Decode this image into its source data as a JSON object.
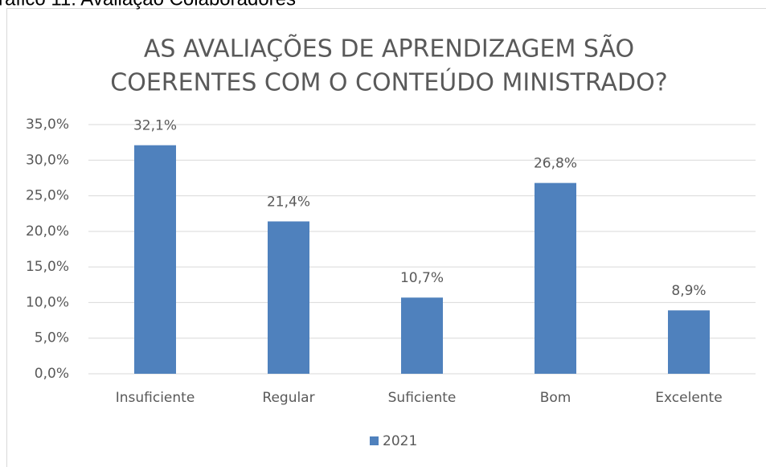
{
  "caption": "ráfico 11: Avaliação Colaboradores",
  "chart_data": {
    "type": "bar",
    "title": [
      "AS AVALIAÇÕES DE APRENDIZAGEM SÃO",
      "COERENTES COM O CONTEÚDO MINISTRADO?"
    ],
    "categories": [
      "Insuficiente",
      "Regular",
      "Suficiente",
      "Bom",
      "Excelente"
    ],
    "series": [
      {
        "name": "2021",
        "color": "#4f81bd",
        "values": [
          32.1,
          21.4,
          10.7,
          26.8,
          8.9
        ],
        "value_labels": [
          "32,1%",
          "21,4%",
          "10,7%",
          "26,8%",
          "8,9%"
        ]
      }
    ],
    "ylim": [
      0,
      35
    ],
    "yticks": [
      {
        "value": 0,
        "label": "0,0%"
      },
      {
        "value": 5,
        "label": "5,0%"
      },
      {
        "value": 10,
        "label": "10,0%"
      },
      {
        "value": 15,
        "label": "15,0%"
      },
      {
        "value": 20,
        "label": "20,0%"
      },
      {
        "value": 25,
        "label": "25,0%"
      },
      {
        "value": 30,
        "label": "30,0%"
      },
      {
        "value": 35,
        "label": "35,0%"
      }
    ],
    "grid": true,
    "legend": "bottom"
  }
}
